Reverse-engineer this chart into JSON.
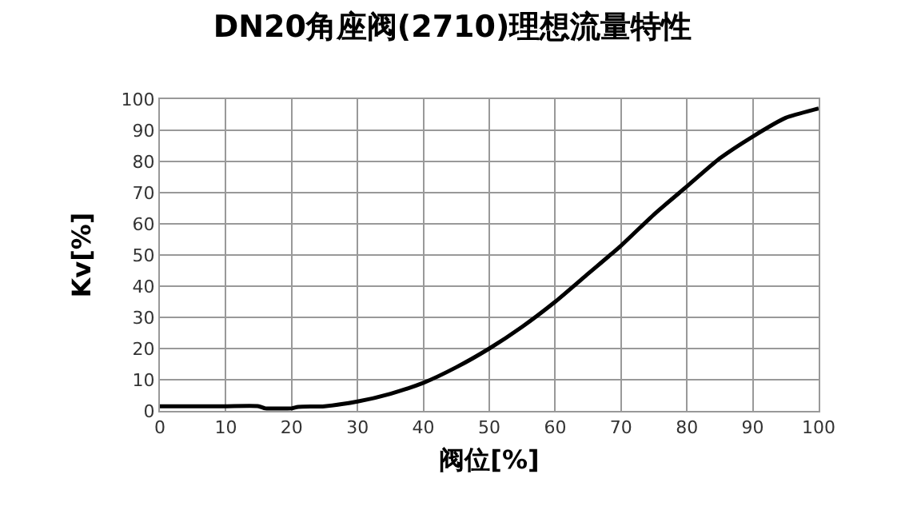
{
  "chart_data": {
    "type": "line",
    "title": "DN20角座阀(2710)理想流量特性",
    "xlabel": "阀位[%]",
    "ylabel": "Kv[%]",
    "x": [
      0,
      5,
      10,
      15,
      16,
      18,
      20,
      21,
      25,
      30,
      35,
      40,
      45,
      50,
      55,
      60,
      65,
      70,
      75,
      80,
      85,
      90,
      95,
      100
    ],
    "series": [
      {
        "color": "#000000",
        "values": [
          1.5,
          1.5,
          1.5,
          1.5,
          0.8,
          0.8,
          0.8,
          1.3,
          1.5,
          3,
          5.5,
          9,
          14,
          20,
          27,
          35,
          44,
          53,
          63,
          72,
          81,
          88,
          94,
          97
        ]
      }
    ],
    "xlim": [
      0,
      100
    ],
    "xticks": [
      0,
      10,
      20,
      30,
      40,
      50,
      60,
      70,
      80,
      90,
      100
    ],
    "ylim": [
      0,
      100
    ],
    "yticks": [
      0,
      10,
      20,
      30,
      40,
      50,
      60,
      70,
      80,
      90,
      100
    ],
    "grid": true,
    "marker": "none",
    "line_style": "solid"
  }
}
